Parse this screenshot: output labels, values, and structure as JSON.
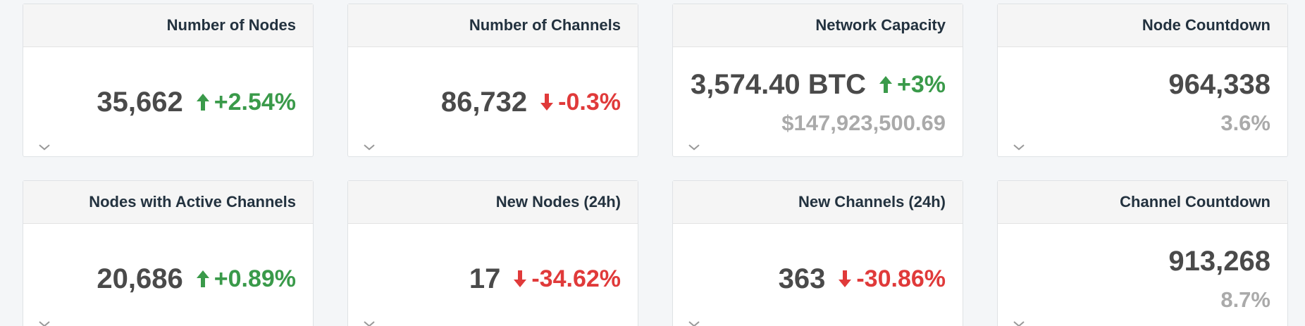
{
  "cards": [
    {
      "title": "Number of Nodes",
      "value": "35,662",
      "change": "+2.54%",
      "change_color": "#3a9a4a"
    },
    {
      "title": "Number of Channels",
      "value": "86,732",
      "change": "-0.3%",
      "change_color": "#e03a3a"
    },
    {
      "title": "Network Capacity",
      "value": "3,574.40 BTC",
      "change": "+3%",
      "change_color": "#3a9a4a",
      "sub": "$147,923,500.69"
    },
    {
      "title": "Node Countdown",
      "value": "964,338",
      "sub": "3.6%"
    },
    {
      "title": "Nodes with Active Channels",
      "value": "20,686",
      "change": "+0.89%",
      "change_color": "#3a9a4a"
    },
    {
      "title": "New Nodes (24h)",
      "value": "17",
      "change": "-34.62%",
      "change_color": "#e03a3a"
    },
    {
      "title": "New Channels (24h)",
      "value": "363",
      "change": "-30.86%",
      "change_color": "#e03a3a"
    },
    {
      "title": "Channel Countdown",
      "value": "913,268",
      "sub": "8.7%"
    }
  ]
}
